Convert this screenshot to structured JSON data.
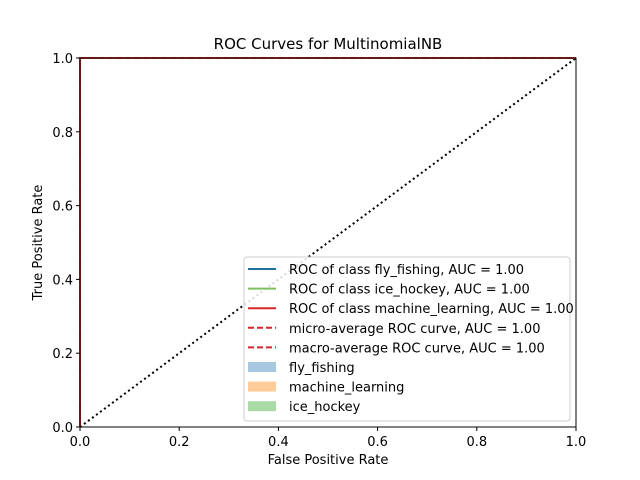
{
  "chart_data": {
    "type": "line",
    "title": "ROC Curves for MultinomialNB",
    "xlabel": "False Positive Rate",
    "ylabel": "True Positive Rate",
    "xlim": [
      0,
      1
    ],
    "ylim": [
      0,
      1
    ],
    "xticks": [
      "0.0",
      "0.2",
      "0.4",
      "0.6",
      "0.8",
      "1.0"
    ],
    "yticks": [
      "0.0",
      "0.2",
      "0.4",
      "0.6",
      "0.8",
      "1.0"
    ],
    "grid": false,
    "legend_position": "lower-right",
    "series": [
      {
        "name": "ROC of class fly_fishing, AUC = 1.00",
        "style": "solid",
        "color": "#1f6f9f",
        "x": [
          0,
          0,
          1
        ],
        "y": [
          0,
          1,
          1
        ]
      },
      {
        "name": "ROC of class ice_hockey, AUC = 1.00",
        "style": "solid",
        "color": "#7fbf5f",
        "x": [
          0,
          0,
          1
        ],
        "y": [
          0,
          1,
          1
        ]
      },
      {
        "name": "ROC of class machine_learning, AUC = 1.00",
        "style": "solid",
        "color": "#d62728",
        "x": [
          0,
          0,
          1
        ],
        "y": [
          0,
          1,
          1
        ]
      },
      {
        "name": "micro-average ROC curve, AUC = 1.00",
        "style": "dashed",
        "color": "#d62728",
        "x": [
          0,
          0,
          1
        ],
        "y": [
          0,
          1,
          1
        ]
      },
      {
        "name": "macro-average ROC curve, AUC = 1.00",
        "style": "dashed",
        "color": "#d62728",
        "x": [
          0,
          0,
          1
        ],
        "y": [
          0,
          1,
          1
        ]
      }
    ],
    "patches": [
      {
        "name": "fly_fishing",
        "color": "#a6c8e0"
      },
      {
        "name": "machine_learning",
        "color": "#ffcc99"
      },
      {
        "name": "ice_hockey",
        "color": "#a9dba6"
      }
    ],
    "diagonal": {
      "x": [
        0,
        1
      ],
      "y": [
        0,
        1
      ],
      "style": "dotted",
      "color": "#000000"
    }
  }
}
